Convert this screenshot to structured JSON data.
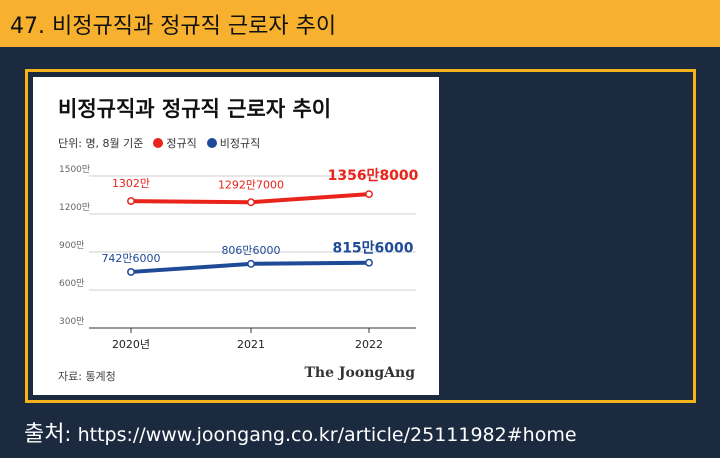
{
  "header": {
    "title": "47. 비정규직과 정규직 근로자 추이"
  },
  "card": {
    "title": "비정규직과 정규직 근로자 추이",
    "unit_note": "단위: 명, 8월 기준",
    "source": "자료: 통계청",
    "brand": "The JoongAng"
  },
  "footer": {
    "label": "출처",
    "sep": ": ",
    "url": "https://www.joongang.co.kr/article/25111982#home"
  },
  "colors": {
    "regular": "#e8241b",
    "nonregular": "#1f4a97",
    "header_bg": "#f7b12e",
    "frame": "#f5b31a",
    "page_bg": "#1c2a40"
  },
  "chart_data": {
    "type": "line",
    "title": "비정규직과 정규직 근로자 추이",
    "categories": [
      "2020년",
      "2021",
      "2022"
    ],
    "yticks": [
      "1500만",
      "1200만",
      "900만",
      "600만",
      "300만"
    ],
    "ytick_values": [
      15000000,
      12000000,
      9000000,
      6000000,
      3000000
    ],
    "ylim": [
      3000000,
      15000000
    ],
    "grid": true,
    "legend": "top-left",
    "series": [
      {
        "name": "정규직",
        "color": "#e8241b",
        "values": [
          13020000,
          12927000,
          13568000
        ],
        "labels": [
          "1302만",
          "1292만7000",
          "1356만8000"
        ]
      },
      {
        "name": "비정규직",
        "color": "#1f4a97",
        "values": [
          7426000,
          8066000,
          8156000
        ],
        "labels": [
          "742만6000",
          "806만6000",
          "815만6000"
        ]
      }
    ]
  }
}
